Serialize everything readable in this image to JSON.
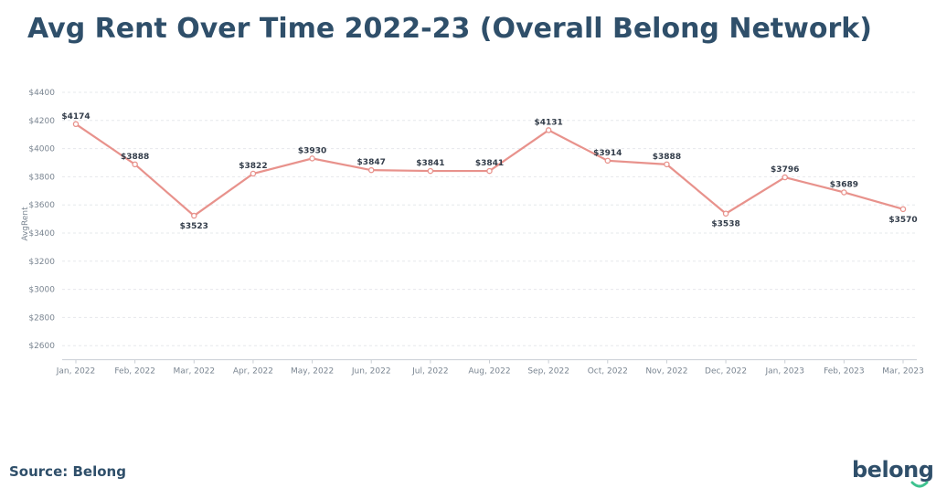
{
  "chart_data": {
    "type": "line",
    "title": "Avg Rent Over Time 2022-23 (Overall Belong Network)",
    "y_label": "AvgRent",
    "source": "Source: Belong",
    "logo": "belong",
    "categories": [
      "Jan, 2022",
      "Feb, 2022",
      "Mar, 2022",
      "Apr, 2022",
      "May, 2022",
      "Jun, 2022",
      "Jul, 2022",
      "Aug, 2022",
      "Sep, 2022",
      "Oct, 2022",
      "Nov, 2022",
      "Dec, 2022",
      "Jan, 2023",
      "Feb, 2023",
      "Mar, 2023"
    ],
    "series": [
      {
        "name": "AvgRent",
        "color": "#e8928c",
        "values": [
          4174,
          3888,
          3523,
          3822,
          3930,
          3847,
          3841,
          3841,
          4131,
          3914,
          3888,
          3538,
          3796,
          3689,
          3570
        ],
        "value_labels": [
          "$4174",
          "$3888",
          "$3523",
          "$3822",
          "$3930",
          "$3847",
          "$3841",
          "$3841",
          "$4131",
          "$3914",
          "$3888",
          "$3538",
          "$3796",
          "$3689",
          "$3570"
        ]
      }
    ],
    "ylim": [
      2500,
      4400
    ],
    "yticks": [
      {
        "value": 2600,
        "label": "$2600"
      },
      {
        "value": 2800,
        "label": "$2800"
      },
      {
        "value": 3000,
        "label": "$3000"
      },
      {
        "value": 3200,
        "label": "$3200"
      },
      {
        "value": 3400,
        "label": "$3400"
      },
      {
        "value": 3600,
        "label": "$3600"
      },
      {
        "value": 3800,
        "label": "$3800"
      },
      {
        "value": 4000,
        "label": "$4000"
      },
      {
        "value": 4200,
        "label": "$4200"
      },
      {
        "value": 4400,
        "label": "$4400"
      }
    ],
    "grid": true
  }
}
